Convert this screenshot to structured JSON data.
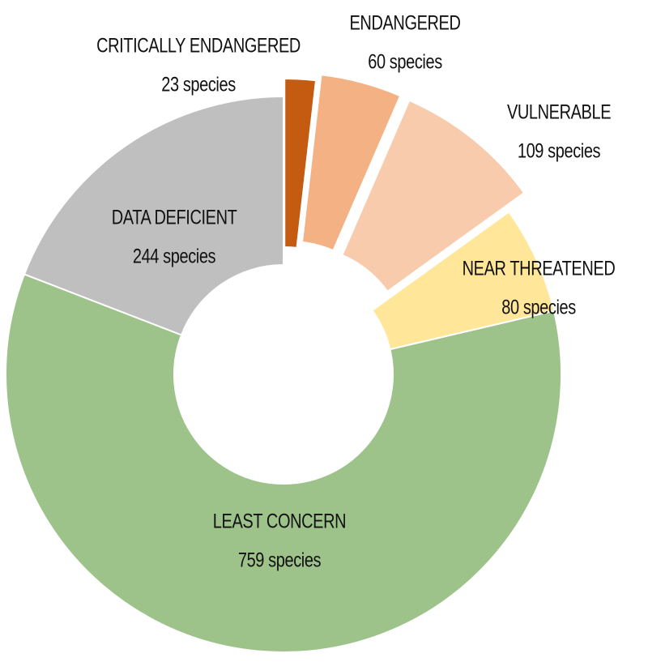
{
  "chart_data": {
    "type": "donut",
    "categories": [
      "CRITICALLY ENDANGERED",
      "ENDANGERED",
      "VULNERABLE",
      "NEAR THREATENED",
      "LEAST CONCERN",
      "DATA DEFICIENT"
    ],
    "values": [
      23,
      60,
      109,
      80,
      759,
      244
    ],
    "value_labels": [
      "23 species",
      "60 species",
      "109 species",
      "80 species",
      "759 species",
      "244 species"
    ],
    "colors": [
      "#c55a11",
      "#f4b183",
      "#f8cbad",
      "#ffe699",
      "#9dc38a",
      "#bfbfbf"
    ]
  }
}
